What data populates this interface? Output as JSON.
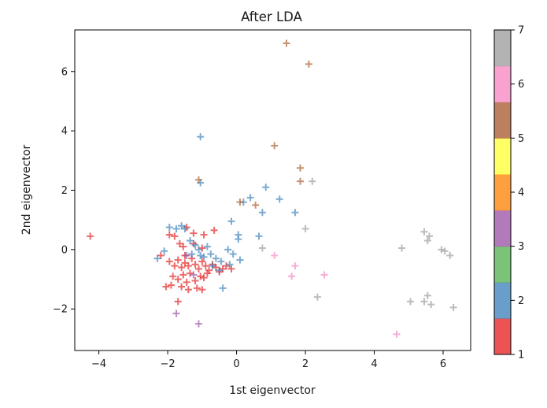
{
  "chart_data": {
    "type": "scatter",
    "title": "After LDA",
    "xlabel": "1st eigenvector",
    "ylabel": "2nd eigenvector",
    "xlim": [
      -4.7,
      6.8
    ],
    "ylim": [
      -3.4,
      7.4
    ],
    "x_ticks": [
      -4,
      -2,
      0,
      2,
      4,
      6
    ],
    "y_ticks": [
      -2,
      0,
      2,
      4,
      6
    ],
    "x_tick_labels": [
      "−4",
      "−2",
      "0",
      "2",
      "4",
      "6"
    ],
    "y_tick_labels": [
      "−2",
      "0",
      "2",
      "4",
      "6"
    ],
    "marker": "plus",
    "colormap": "Set1",
    "grid": false,
    "colorbar": {
      "min": 1,
      "max": 7,
      "ticks": [
        1,
        2,
        3,
        4,
        5,
        6,
        7
      ],
      "tick_labels": [
        "1",
        "2",
        "3",
        "4",
        "5",
        "6",
        "7"
      ],
      "colors": [
        "#e41a1c",
        "#377eb8",
        "#4daf4a",
        "#984ea3",
        "#ff7f00",
        "#ffff33",
        "#a65628",
        "#f781bf",
        "#999999"
      ]
    },
    "series": [
      {
        "class": 1,
        "color": "#e41a1c",
        "points": [
          [
            -4.25,
            0.45
          ],
          [
            -1.95,
            0.5
          ],
          [
            -1.8,
            0.45
          ],
          [
            -1.65,
            0.2
          ],
          [
            -1.55,
            0.1
          ],
          [
            -1.45,
            0.75
          ],
          [
            -1.25,
            0.55
          ],
          [
            -0.95,
            0.5
          ],
          [
            -0.65,
            0.65
          ],
          [
            -1.95,
            -0.4
          ],
          [
            -1.8,
            -0.55
          ],
          [
            -1.7,
            -0.35
          ],
          [
            -1.6,
            -0.6
          ],
          [
            -1.5,
            -0.45
          ],
          [
            -1.4,
            -0.55
          ],
          [
            -1.3,
            -0.3
          ],
          [
            -1.2,
            -0.5
          ],
          [
            -1.1,
            -0.65
          ],
          [
            -1.0,
            -0.4
          ],
          [
            -0.9,
            -0.55
          ],
          [
            -0.8,
            -0.7
          ],
          [
            -0.7,
            -0.5
          ],
          [
            -0.6,
            -0.6
          ],
          [
            -0.5,
            -0.75
          ],
          [
            -0.4,
            -0.65
          ],
          [
            -1.85,
            -0.9
          ],
          [
            -1.7,
            -1.0
          ],
          [
            -1.55,
            -0.85
          ],
          [
            -1.45,
            -1.1
          ],
          [
            -1.35,
            -0.8
          ],
          [
            -1.2,
            -1.05
          ],
          [
            -1.05,
            -0.9
          ],
          [
            -0.95,
            -0.95
          ],
          [
            -0.85,
            -0.8
          ],
          [
            -2.05,
            -1.25
          ],
          [
            -1.9,
            -1.2
          ],
          [
            -1.6,
            -1.25
          ],
          [
            -1.4,
            -1.35
          ],
          [
            -1.15,
            -1.3
          ],
          [
            -1.0,
            -1.35
          ],
          [
            -1.7,
            -1.75
          ],
          [
            -0.3,
            -0.55
          ],
          [
            -0.15,
            -0.65
          ],
          [
            -2.2,
            -0.2
          ],
          [
            -1.25,
            0.2
          ],
          [
            -1.0,
            0.05
          ],
          [
            -1.5,
            -0.2
          ]
        ]
      },
      {
        "class": 2,
        "color": "#377eb8",
        "points": [
          [
            -1.05,
            3.8
          ],
          [
            -1.05,
            2.25
          ],
          [
            -2.3,
            -0.3
          ],
          [
            -2.1,
            -0.05
          ],
          [
            -1.95,
            0.75
          ],
          [
            -1.75,
            0.7
          ],
          [
            -1.6,
            0.8
          ],
          [
            -1.5,
            0.7
          ],
          [
            -1.35,
            0.3
          ],
          [
            -1.2,
            0.15
          ],
          [
            -1.1,
            0.0
          ],
          [
            -1.3,
            -0.15
          ],
          [
            -1.05,
            -0.2
          ],
          [
            -0.95,
            -0.25
          ],
          [
            -0.85,
            0.1
          ],
          [
            -0.75,
            -0.15
          ],
          [
            -0.6,
            -0.3
          ],
          [
            -0.45,
            -0.4
          ],
          [
            -0.25,
            0.0
          ],
          [
            -0.2,
            -0.5
          ],
          [
            -0.1,
            -0.15
          ],
          [
            0.05,
            0.35
          ],
          [
            0.05,
            0.5
          ],
          [
            0.1,
            -0.35
          ],
          [
            -0.15,
            0.95
          ],
          [
            0.2,
            1.6
          ],
          [
            0.4,
            1.75
          ],
          [
            0.65,
            0.45
          ],
          [
            0.75,
            1.25
          ],
          [
            0.85,
            2.1
          ],
          [
            1.25,
            1.7
          ],
          [
            1.7,
            1.25
          ],
          [
            -0.4,
            -1.3
          ],
          [
            -0.7,
            -0.55
          ],
          [
            -0.5,
            -0.7
          ]
        ]
      },
      {
        "class": 3,
        "color": "#984ea3",
        "points": [
          [
            -1.75,
            -2.15
          ],
          [
            -1.1,
            -2.5
          ],
          [
            -1.45,
            -0.2
          ],
          [
            -1.25,
            -0.85
          ]
        ]
      },
      {
        "class": 5,
        "color": "#a65628",
        "points": [
          [
            1.45,
            6.95
          ],
          [
            2.1,
            6.25
          ],
          [
            1.1,
            3.5
          ],
          [
            1.85,
            2.75
          ],
          [
            1.85,
            2.3
          ],
          [
            -1.1,
            2.35
          ],
          [
            0.1,
            1.6
          ],
          [
            0.55,
            1.5
          ]
        ]
      },
      {
        "class": 6,
        "color": "#f781bf",
        "points": [
          [
            1.1,
            -0.2
          ],
          [
            1.7,
            -0.55
          ],
          [
            1.6,
            -0.9
          ],
          [
            2.55,
            -0.85
          ],
          [
            4.65,
            -2.85
          ]
        ]
      },
      {
        "class": 7,
        "color": "#999999",
        "points": [
          [
            2.2,
            2.3
          ],
          [
            2.0,
            0.7
          ],
          [
            0.75,
            0.05
          ],
          [
            2.35,
            -1.6
          ],
          [
            4.8,
            0.05
          ],
          [
            5.05,
            -1.75
          ],
          [
            5.45,
            0.6
          ],
          [
            5.6,
            0.45
          ],
          [
            5.55,
            0.3
          ],
          [
            5.55,
            -1.55
          ],
          [
            5.45,
            -1.75
          ],
          [
            5.65,
            -1.85
          ],
          [
            5.95,
            0.0
          ],
          [
            6.05,
            -0.05
          ],
          [
            6.2,
            -0.2
          ],
          [
            6.3,
            -1.95
          ]
        ]
      }
    ]
  }
}
